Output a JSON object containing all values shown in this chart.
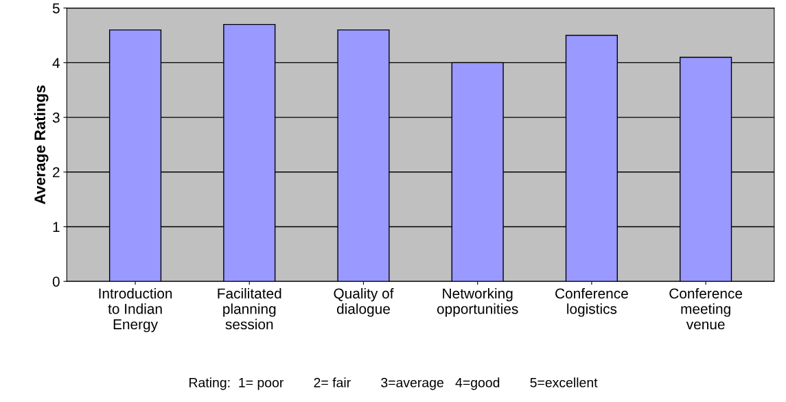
{
  "chart_data": {
    "type": "bar",
    "ylabel": "Average Ratings",
    "categories": [
      "Introduction\nto Indian\nEnergy",
      "Facilitated\nplanning\nsession",
      "Quality of\ndialogue",
      "Networking\nopportunities",
      "Conference\nlogistics",
      "Conference\nmeeting\nvenue"
    ],
    "values": [
      4.6,
      4.7,
      4.6,
      4.0,
      4.5,
      4.1
    ],
    "color": "#9999ff",
    "ylim": [
      0,
      5
    ],
    "yticks": [
      0,
      1,
      2,
      3,
      4,
      5
    ],
    "grid": "y",
    "annotations": [
      "Rating:  1= poor        2= fair        3=average   4=good        5=excellent"
    ]
  }
}
